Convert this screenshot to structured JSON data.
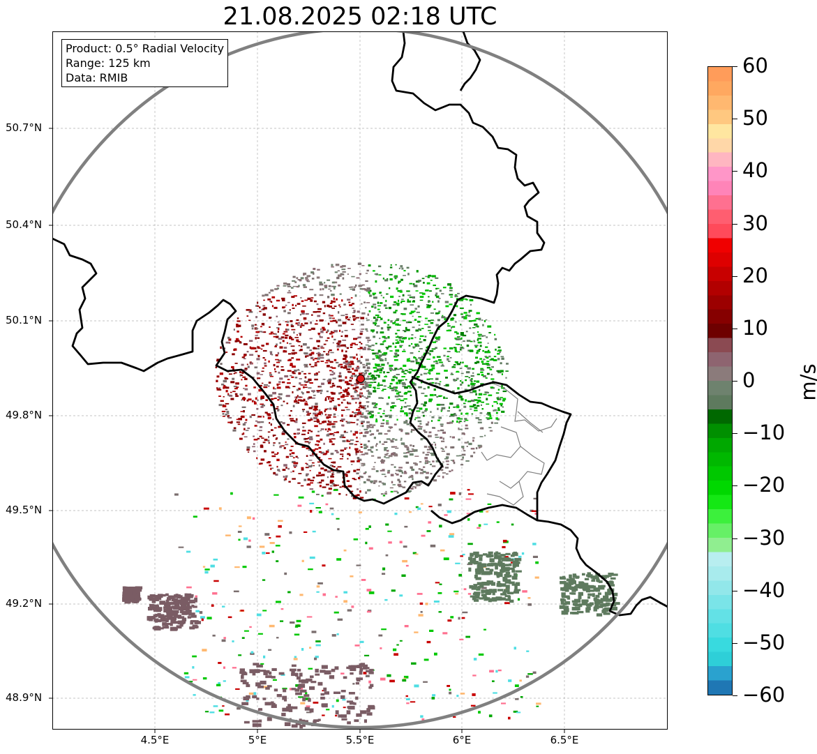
{
  "title": "21.08.2025 02:18 UTC",
  "info": {
    "product": "Product: 0.5° Radial Velocity",
    "range": "Range: 125 km",
    "source": "Data: RMIB"
  },
  "latitude_labels": [
    "50.7°N",
    "50.4°N",
    "50.1°N",
    "49.8°N",
    "49.5°N",
    "49.2°N",
    "48.9°N"
  ],
  "longitude_labels": [
    "4.5°E",
    "5°E",
    "5.5°E",
    "6°E",
    "6.5°E"
  ],
  "colorbar": {
    "unit": "m/s",
    "tick_labels": [
      "60",
      "50",
      "40",
      "30",
      "20",
      "10",
      "0",
      "−10",
      "−20",
      "−30",
      "−40",
      "−50",
      "−60"
    ],
    "min": -60,
    "max": 60,
    "colors": [
      "#1f77b4",
      "#2aa2cf",
      "#2ecfd8",
      "#38dadf",
      "#4fdee3",
      "#63e1e6",
      "#7ae4e8",
      "#92e7ea",
      "#a8ebed",
      "#b8eef0",
      "#90ee90",
      "#66f066",
      "#3cf03c",
      "#14e814",
      "#00d800",
      "#00c800",
      "#00b800",
      "#00a800",
      "#008f00",
      "#006800",
      "#5e7a5e",
      "#6e826e",
      "#8b7b7b",
      "#8e6470",
      "#8b4a52",
      "#6e0000",
      "#860000",
      "#9c0000",
      "#b20000",
      "#c80000",
      "#de0000",
      "#f00000",
      "#ff4a5a",
      "#ff5e70",
      "#ff7090",
      "#ff84b8",
      "#ff96c8",
      "#ffb6c1",
      "#ffd7a8",
      "#ffe6a0",
      "#ffc880",
      "#ffb870",
      "#ffa860",
      "#ff9c5a"
    ]
  },
  "radar": {
    "name": "RMIB",
    "lon": 5.506,
    "lat": 49.914,
    "range_km": 125
  },
  "map_extent": {
    "lon_min": 4.0,
    "lon_max": 7.0,
    "lat_min": 48.8,
    "lat_max": 51.0
  },
  "colors": {
    "border": "#000000",
    "ring": "#808080",
    "grid": "#b0b0b0",
    "radar_marker": "#e41a1c",
    "velocity_green": "#00b400",
    "velocity_red": "#8b0000",
    "velocity_gray": "#7a6e6e"
  }
}
